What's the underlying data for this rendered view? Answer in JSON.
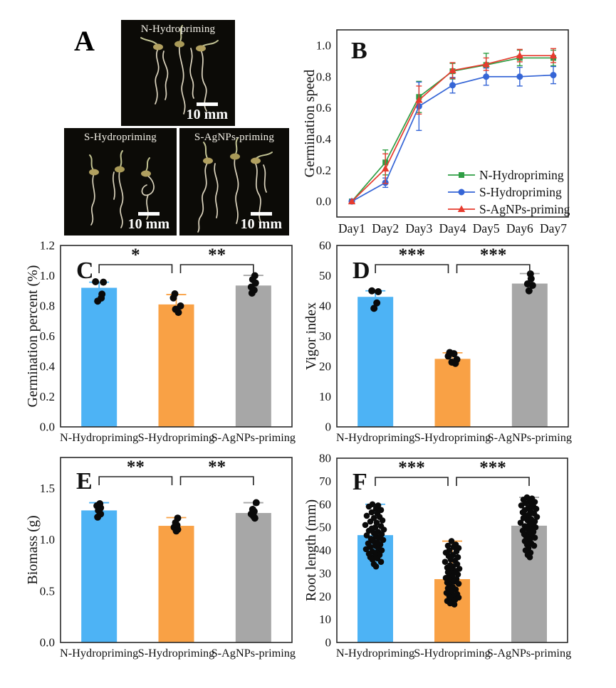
{
  "figure": {
    "title": "Seed priming figure panels A-F"
  },
  "panel_a": {
    "label": "A",
    "photos": [
      {
        "title": "N-Hydropriming",
        "scale_label": "10 mm"
      },
      {
        "title": "S-Hydropriming",
        "scale_label": "10 mm"
      },
      {
        "title": "S-AgNPs-priming",
        "scale_label": "10 mm"
      }
    ]
  },
  "colors": {
    "bar_blue": "#4db3f5",
    "bar_orange": "#f9a145",
    "bar_gray": "#a7a7a7",
    "line_green": "#2f9e44",
    "line_blue": "#3565d6",
    "line_red": "#e63b2e",
    "axis": "#2a2a2a",
    "point_black": "#0a0a0a"
  },
  "chart_data": [
    {
      "id": "B",
      "panel_label": "B",
      "type": "line",
      "title": "",
      "xlabel": "",
      "ylabel": "Germination speed",
      "categories": [
        "Day1",
        "Day2",
        "Day3",
        "Day4",
        "Day5",
        "Day6",
        "Day7"
      ],
      "ylim": [
        -0.1,
        1.1
      ],
      "yticks": [
        0.0,
        0.2,
        0.4,
        0.6,
        0.8,
        1.0
      ],
      "ytick_labels": [
        "0.0",
        "0.2",
        "0.4",
        "0.6",
        "0.8",
        "1.0"
      ],
      "grid": false,
      "legend_position": "inside-bottom-right",
      "series": [
        {
          "name": "N-Hydropriming",
          "color": "#2f9e44",
          "marker": "square",
          "values": [
            0.0,
            0.25,
            0.67,
            0.835,
            0.875,
            0.92,
            0.92
          ],
          "errors": [
            0.005,
            0.08,
            0.1,
            0.05,
            0.075,
            0.05,
            0.05
          ]
        },
        {
          "name": "S-Hydropriming",
          "color": "#3565d6",
          "marker": "circle",
          "values": [
            0.0,
            0.12,
            0.61,
            0.745,
            0.8,
            0.8,
            0.81
          ],
          "errors": [
            0.005,
            0.03,
            0.155,
            0.05,
            0.055,
            0.06,
            0.055
          ]
        },
        {
          "name": "S-AgNPs-priming",
          "color": "#e63b2e",
          "marker": "triangle",
          "values": [
            0.0,
            0.21,
            0.65,
            0.84,
            0.88,
            0.935,
            0.935
          ],
          "errors": [
            0.005,
            0.095,
            0.09,
            0.05,
            0.04,
            0.04,
            0.045
          ]
        }
      ]
    },
    {
      "id": "C",
      "panel_label": "C",
      "type": "bar",
      "ylabel": "Germination percent (%)",
      "categories": [
        "N-Hydropriming",
        "S-Hydropriming",
        "S-AgNPs-priming"
      ],
      "values": [
        0.92,
        0.81,
        0.935
      ],
      "errors": [
        0.037,
        0.065,
        0.067
      ],
      "bar_colors": [
        "#4db3f5",
        "#f9a145",
        "#a7a7a7"
      ],
      "ylim": [
        0,
        1.2
      ],
      "yticks": [
        0.0,
        0.2,
        0.4,
        0.6,
        0.8,
        1.0,
        1.2
      ],
      "ytick_labels": [
        "0.0",
        "0.2",
        "0.4",
        "0.6",
        "0.8",
        "1.0",
        "1.2"
      ],
      "point_radius": 5,
      "points": [
        [
          [
            0.96,
            -5
          ],
          [
            0.957,
            6
          ],
          [
            0.878,
            4
          ],
          [
            0.852,
            3
          ],
          [
            0.832,
            -2
          ]
        ],
        [
          [
            0.88,
            -2
          ],
          [
            0.853,
            -4
          ],
          [
            0.8,
            6
          ],
          [
            0.778,
            -1
          ],
          [
            0.757,
            3
          ]
        ],
        [
          [
            1.0,
            2
          ],
          [
            0.975,
            -1
          ],
          [
            0.952,
            3
          ],
          [
            0.925,
            -3
          ],
          [
            0.905,
            1
          ],
          [
            0.885,
            -2
          ]
        ]
      ],
      "significance": [
        {
          "from": 0,
          "to": 1,
          "label": "*"
        },
        {
          "from": 1,
          "to": 2,
          "label": "**"
        }
      ]
    },
    {
      "id": "D",
      "panel_label": "D",
      "type": "bar",
      "ylabel": "Vigor index",
      "categories": [
        "N-Hydropriming",
        "S-Hydropriming",
        "S-AgNPs-priming"
      ],
      "values": [
        43,
        22.5,
        47.4
      ],
      "errors": [
        2,
        2,
        3.3
      ],
      "bar_colors": [
        "#4db3f5",
        "#f9a145",
        "#a7a7a7"
      ],
      "ylim": [
        0,
        60
      ],
      "yticks": [
        0,
        10,
        20,
        30,
        40,
        50,
        60
      ],
      "ytick_labels": [
        "0",
        "10",
        "20",
        "30",
        "40",
        "50",
        "60"
      ],
      "point_radius": 5,
      "points": [
        [
          [
            45,
            -5
          ],
          [
            44.7,
            4
          ],
          [
            41,
            2
          ],
          [
            39.2,
            -2
          ]
        ],
        [
          [
            24.6,
            -4
          ],
          [
            24.2,
            2
          ],
          [
            23.4,
            -6
          ],
          [
            22.3,
            6
          ],
          [
            21.4,
            -1
          ],
          [
            21,
            4
          ]
        ],
        [
          [
            50.6,
            1
          ],
          [
            49,
            2
          ],
          [
            47.3,
            -3
          ],
          [
            46.8,
            4
          ],
          [
            45,
            -1
          ]
        ]
      ],
      "significance": [
        {
          "from": 0,
          "to": 1,
          "label": "***"
        },
        {
          "from": 1,
          "to": 2,
          "label": "***"
        }
      ]
    },
    {
      "id": "E",
      "panel_label": "E",
      "type": "bar",
      "ylabel": "Biomass (g)",
      "categories": [
        "N-Hydropriming",
        "S-Hydropriming",
        "S-AgNPs-priming"
      ],
      "values": [
        1.285,
        1.135,
        1.26
      ],
      "errors": [
        0.075,
        0.08,
        0.1
      ],
      "bar_colors": [
        "#4db3f5",
        "#f9a145",
        "#a7a7a7"
      ],
      "ylim": [
        0,
        1.8
      ],
      "yticks": [
        0.0,
        0.5,
        1.0,
        1.5
      ],
      "ytick_labels": [
        "0.0",
        "0.5",
        "1.0",
        "1.5"
      ],
      "point_radius": 5,
      "points": [
        [
          [
            1.35,
            1
          ],
          [
            1.33,
            -3
          ],
          [
            1.31,
            2
          ],
          [
            1.285,
            -1
          ],
          [
            1.25,
            2
          ],
          [
            1.22,
            -2
          ]
        ],
        [
          [
            1.21,
            2
          ],
          [
            1.165,
            -1
          ],
          [
            1.14,
            1
          ],
          [
            1.12,
            -3
          ],
          [
            1.1,
            2
          ],
          [
            1.085,
            0
          ]
        ],
        [
          [
            1.36,
            4
          ],
          [
            1.295,
            -1
          ],
          [
            1.275,
            1
          ],
          [
            1.25,
            -3
          ],
          [
            1.23,
            0
          ],
          [
            1.21,
            2
          ]
        ]
      ],
      "significance": [
        {
          "from": 0,
          "to": 1,
          "label": "**"
        },
        {
          "from": 1,
          "to": 2,
          "label": "**"
        }
      ]
    },
    {
      "id": "F",
      "panel_label": "F",
      "type": "bar",
      "ylabel": "Root length (mm)",
      "categories": [
        "N-Hydropriming",
        "S-Hydropriming",
        "S-AgNPs-priming"
      ],
      "values": [
        46.6,
        27.5,
        50.7
      ],
      "errors": [
        13.4,
        16.5,
        12.3
      ],
      "bar_colors": [
        "#4db3f5",
        "#f9a145",
        "#a7a7a7"
      ],
      "ylim": [
        0,
        80
      ],
      "yticks": [
        0,
        10,
        20,
        30,
        40,
        50,
        60,
        70,
        80
      ],
      "ytick_labels": [
        "0",
        "10",
        "20",
        "30",
        "40",
        "50",
        "60",
        "70",
        "80"
      ],
      "point_radius": 4.3,
      "points": [
        [
          [
            60,
            -4
          ],
          [
            59.5,
            4
          ],
          [
            59,
            -9
          ],
          [
            58,
            1
          ],
          [
            57.5,
            8
          ],
          [
            56.5,
            -5
          ],
          [
            56,
            3
          ],
          [
            55,
            -12
          ],
          [
            54.5,
            6
          ],
          [
            54,
            -2
          ],
          [
            53,
            10
          ],
          [
            52.5,
            -7
          ],
          [
            52,
            2
          ],
          [
            51,
            -14
          ],
          [
            50.5,
            8
          ],
          [
            50,
            0
          ],
          [
            49.5,
            -5
          ],
          [
            49,
            12
          ],
          [
            48.5,
            -9
          ],
          [
            48,
            4
          ],
          [
            47.5,
            -2
          ],
          [
            47,
            9
          ],
          [
            46.5,
            -12
          ],
          [
            46,
            1
          ],
          [
            45.5,
            6
          ],
          [
            45,
            -6
          ],
          [
            44.5,
            11
          ],
          [
            44,
            -3
          ],
          [
            43.5,
            3
          ],
          [
            43,
            -10
          ],
          [
            42.5,
            7
          ],
          [
            42,
            0
          ],
          [
            41.5,
            -7
          ],
          [
            41,
            4
          ],
          [
            40.5,
            -13
          ],
          [
            40,
            9
          ],
          [
            39.5,
            -4
          ],
          [
            39,
            2
          ],
          [
            38.5,
            -9
          ],
          [
            38,
            6
          ],
          [
            37.5,
            -1
          ],
          [
            37,
            -7
          ],
          [
            36.5,
            3
          ],
          [
            36,
            -4
          ],
          [
            35,
            8
          ],
          [
            34,
            -2
          ],
          [
            33,
            1
          ]
        ],
        [
          [
            44,
            -1
          ],
          [
            42.5,
            5
          ],
          [
            42,
            -6
          ],
          [
            41.5,
            2
          ],
          [
            41,
            9
          ],
          [
            40,
            -4
          ],
          [
            39.5,
            6
          ],
          [
            39,
            -9
          ],
          [
            38,
            1
          ],
          [
            37.5,
            -5
          ],
          [
            37,
            8
          ],
          [
            36,
            -2
          ],
          [
            35.5,
            4
          ],
          [
            35,
            -10
          ],
          [
            34,
            7
          ],
          [
            33.5,
            -3
          ],
          [
            33,
            1
          ],
          [
            32.5,
            -7
          ],
          [
            32,
            10
          ],
          [
            31.5,
            -1
          ],
          [
            31,
            5
          ],
          [
            30.5,
            -6
          ],
          [
            30,
            2
          ],
          [
            29.5,
            8
          ],
          [
            29,
            -4
          ],
          [
            28.5,
            0
          ],
          [
            28,
            -9
          ],
          [
            27.5,
            6
          ],
          [
            27,
            -2
          ],
          [
            26.5,
            3
          ],
          [
            26,
            -7
          ],
          [
            25.5,
            9
          ],
          [
            25,
            -3
          ],
          [
            24,
            1
          ],
          [
            23.5,
            -6
          ],
          [
            23,
            5
          ],
          [
            22,
            -1
          ],
          [
            21.5,
            -8
          ],
          [
            21,
            7
          ],
          [
            20.5,
            2
          ],
          [
            20,
            -4
          ],
          [
            19.5,
            9
          ],
          [
            19,
            -2
          ],
          [
            18.5,
            4
          ],
          [
            18,
            -7
          ],
          [
            17.5,
            1
          ],
          [
            17,
            -3
          ],
          [
            16.5,
            3
          ]
        ],
        [
          [
            63,
            -3
          ],
          [
            62.5,
            4
          ],
          [
            62,
            -8
          ],
          [
            61.5,
            1
          ],
          [
            61,
            8
          ],
          [
            60.5,
            -5
          ],
          [
            60,
            3
          ],
          [
            59.5,
            -11
          ],
          [
            59,
            6
          ],
          [
            58.5,
            -1
          ],
          [
            58,
            10
          ],
          [
            57.5,
            -6
          ],
          [
            57,
            2
          ],
          [
            56.5,
            -9
          ],
          [
            56,
            7
          ],
          [
            55.5,
            0
          ],
          [
            55,
            -4
          ],
          [
            54.5,
            11
          ],
          [
            54,
            -8
          ],
          [
            53.5,
            3
          ],
          [
            53,
            -2
          ],
          [
            52.5,
            8
          ],
          [
            52,
            -12
          ],
          [
            51.5,
            1
          ],
          [
            51,
            5
          ],
          [
            50.5,
            -6
          ],
          [
            50,
            9
          ],
          [
            49.5,
            -3
          ],
          [
            49,
            2
          ],
          [
            48.5,
            -9
          ],
          [
            48,
            6
          ],
          [
            47.5,
            -1
          ],
          [
            47,
            -7
          ],
          [
            46.5,
            4
          ],
          [
            46,
            -4
          ],
          [
            45.5,
            8
          ],
          [
            45,
            -2
          ],
          [
            44.5,
            1
          ],
          [
            44,
            -6
          ],
          [
            43,
            3
          ],
          [
            42.5,
            -3
          ],
          [
            42,
            7
          ],
          [
            41,
            -1
          ],
          [
            40,
            -5
          ],
          [
            39,
            2
          ],
          [
            38,
            -2
          ],
          [
            37,
            1
          ]
        ]
      ],
      "significance": [
        {
          "from": 0,
          "to": 1,
          "label": "***"
        },
        {
          "from": 1,
          "to": 2,
          "label": "***"
        }
      ]
    }
  ]
}
